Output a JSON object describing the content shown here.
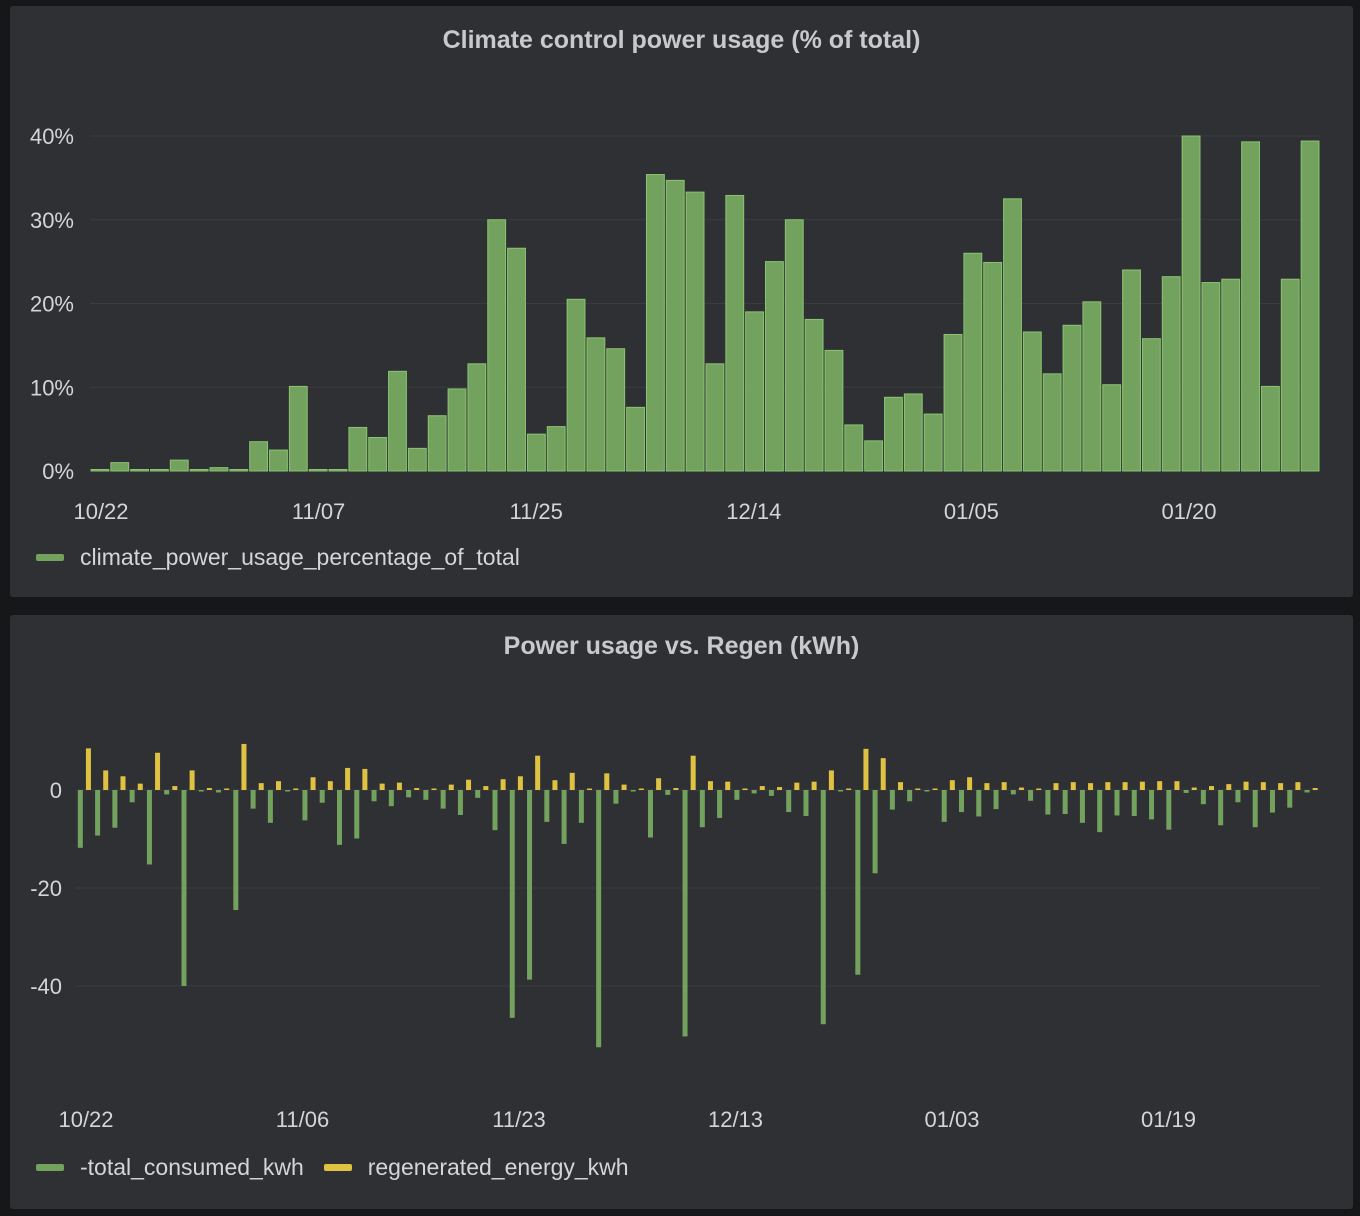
{
  "chart_data": [
    {
      "type": "bar",
      "title": "Climate control power usage (% of total)",
      "y_unit": "%",
      "ylim": [
        0,
        40
      ],
      "yticks": [
        "0%",
        "10%",
        "20%",
        "30%",
        "40%"
      ],
      "x_tick_labels": [
        "10/22",
        "11/07",
        "11/25",
        "12/14",
        "01/05",
        "01/20"
      ],
      "grid": true,
      "legend": "bottom-left",
      "series": [
        {
          "name": "climate_power_usage_percentage_of_total",
          "color": "#73a25e",
          "values": [
            0.1,
            1.0,
            0.1,
            0.1,
            1.3,
            0.1,
            0.4,
            0.1,
            3.5,
            2.5,
            10.1,
            0.1,
            0.1,
            5.2,
            4.0,
            11.9,
            2.7,
            6.6,
            9.8,
            12.8,
            30.0,
            26.6,
            4.4,
            5.3,
            20.5,
            15.9,
            14.6,
            7.6,
            35.4,
            34.7,
            33.3,
            12.8,
            32.9,
            19.0,
            25.0,
            30.0,
            18.1,
            14.4,
            5.5,
            3.6,
            8.8,
            9.2,
            6.8,
            16.3,
            26.0,
            24.9,
            32.5,
            16.6,
            11.6,
            17.4,
            20.2,
            10.3,
            24.0,
            15.8,
            23.2,
            40.0,
            22.5,
            22.9,
            39.3,
            10.1,
            22.9,
            39.4
          ]
        }
      ]
    },
    {
      "type": "bar",
      "title": "Power usage vs. Regen (kWh)",
      "ylim": [
        -55,
        12
      ],
      "yticks": [
        "0",
        "-20",
        "-40"
      ],
      "x_tick_labels": [
        "10/22",
        "11/06",
        "11/23",
        "12/13",
        "01/03",
        "01/19"
      ],
      "grid": true,
      "legend": "bottom-left",
      "series": [
        {
          "name": "-total_consumed_kwh",
          "color": "#73a25e",
          "values": [
            -11.8,
            -9.3,
            -7.7,
            -2.5,
            -15.2,
            -0.9,
            -40.0,
            -0.3,
            -0.5,
            -24.5,
            -3.8,
            -6.7,
            -0.3,
            -6.2,
            -2.6,
            -11.2,
            -9.9,
            -2.3,
            -3.3,
            -1.5,
            -2.0,
            -3.8,
            -5.1,
            -1.6,
            -8.2,
            -46.5,
            -38.7,
            -6.5,
            -11.0,
            -6.7,
            -52.5,
            -2.8,
            -0.3,
            -9.7,
            -1.0,
            -50.3,
            -7.6,
            -5.7,
            -2.0,
            -0.7,
            -1.2,
            -4.5,
            -5.3,
            -47.8,
            -0.3,
            -37.7,
            -17.0,
            -4.0,
            -2.3,
            -0.3,
            -6.5,
            -4.5,
            -5.4,
            -3.9,
            -0.9,
            -2.2,
            -5.0,
            -4.9,
            -6.7,
            -8.6,
            -5.2,
            -5.3,
            -6.0,
            -8.1,
            -0.6,
            -2.9,
            -7.2,
            -2.5,
            -7.6,
            -4.6,
            -3.6,
            -0.5
          ]
        },
        {
          "name": "regenerated_energy_kwh",
          "color": "#e0c243",
          "values": [
            8.5,
            4.0,
            2.8,
            1.3,
            7.6,
            0.8,
            4.0,
            0.4,
            0.3,
            9.4,
            1.4,
            1.8,
            0.2,
            2.6,
            1.8,
            4.5,
            4.3,
            1.3,
            1.5,
            0.4,
            0.3,
            1.1,
            2.1,
            0.8,
            2.2,
            2.8,
            7.0,
            2.0,
            3.5,
            0.3,
            3.4,
            1.1,
            0.3,
            2.4,
            0.4,
            7.0,
            1.8,
            1.7,
            0.3,
            0.8,
            0.6,
            1.5,
            1.7,
            4.0,
            0.2,
            8.4,
            6.5,
            1.6,
            0.3,
            0.3,
            2.0,
            2.6,
            1.4,
            1.6,
            0.5,
            0.2,
            1.4,
            1.6,
            1.4,
            1.6,
            1.6,
            1.7,
            1.8,
            1.8,
            0.5,
            0.8,
            1.2,
            1.7,
            1.6,
            1.4,
            1.6,
            0.4
          ]
        }
      ]
    }
  ]
}
